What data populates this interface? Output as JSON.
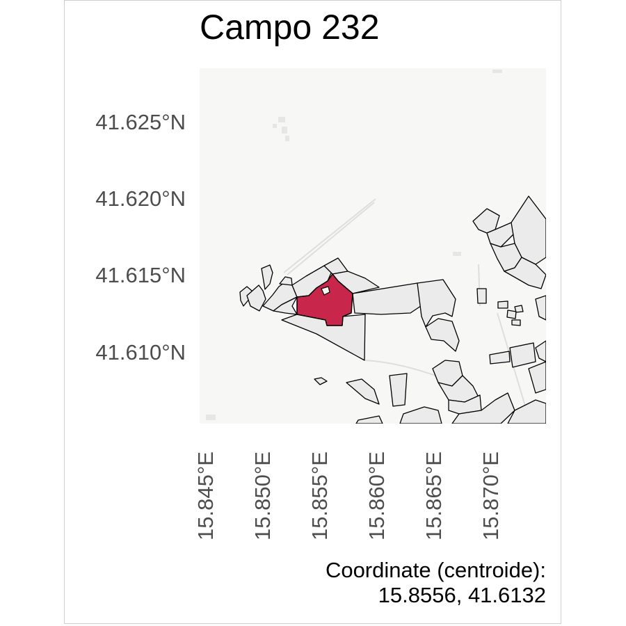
{
  "title": "Campo 232",
  "axes": {
    "y_ticks": [
      "41.625°N",
      "41.620°N",
      "41.615°N",
      "41.610°N"
    ],
    "x_ticks": [
      "15.845°E",
      "15.850°E",
      "15.855°E",
      "15.860°E",
      "15.865°E",
      "15.870°E"
    ]
  },
  "caption": {
    "line1": "Coordinate (centroide):",
    "line2": "15.8556, 41.6132"
  },
  "colors": {
    "highlight_field": "#c8264b",
    "other_fields": "#ebebeb",
    "outline": "#000000",
    "basemap": "#f7f7f6"
  },
  "map": {
    "highlighted_parcel": "Campo 232"
  }
}
